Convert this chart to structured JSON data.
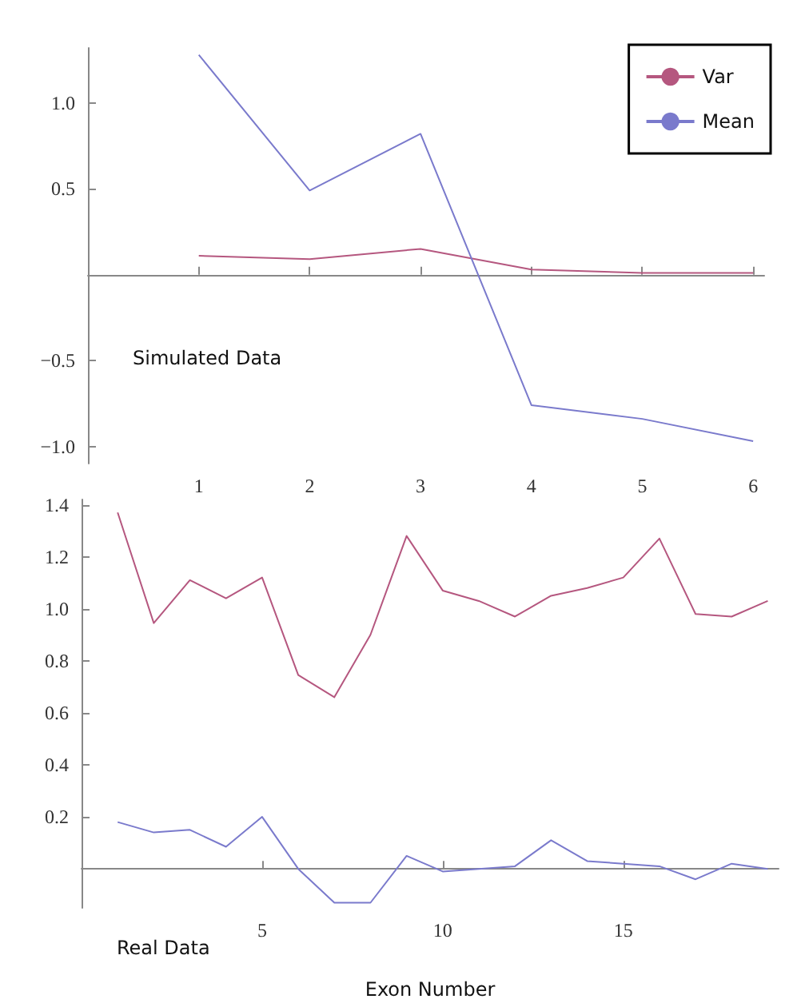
{
  "chart_data": [
    {
      "type": "line",
      "x": [
        1,
        2,
        3,
        4,
        5,
        6
      ],
      "xlim": [
        0,
        6.1
      ],
      "xticks": [
        1,
        2,
        3,
        4,
        5,
        6
      ],
      "ylim": [
        -1.1,
        1.32
      ],
      "yticks": [
        {
          "value": -1,
          "label": "−1.0"
        },
        {
          "value": -0.5,
          "label": "−0.5"
        },
        {
          "value": 0.5,
          "label": "0.5"
        },
        {
          "value": 1,
          "label": "1.0"
        }
      ],
      "legend": "top right",
      "marker": "none",
      "annotations": [
        "Simulated Data"
      ],
      "series": [
        {
          "name": "Var",
          "color": "#b5577f",
          "values": [
            0.11,
            0.09,
            0.15,
            0.03,
            0.01,
            0.01
          ]
        },
        {
          "name": "Mean",
          "color": "#7a7acc",
          "values": [
            1.28,
            0.49,
            0.82,
            -0.76,
            -0.84,
            -0.97
          ]
        }
      ]
    },
    {
      "type": "line",
      "x": [
        1,
        2,
        3,
        4,
        5,
        6,
        7,
        8,
        9,
        10,
        11,
        12,
        13,
        14,
        15,
        16,
        17,
        18,
        19
      ],
      "xlim": [
        0,
        19.3
      ],
      "xticks": [
        5,
        10,
        15
      ],
      "ylim": [
        -0.15,
        1.42
      ],
      "yticks": [
        0.2,
        0.4,
        0.6,
        0.8,
        {
          "value": 1,
          "label": "1.0"
        },
        1.2,
        1.4
      ],
      "xlabel": "Exon Number",
      "marker": "none",
      "annotations": [
        "Real Data"
      ],
      "series": [
        {
          "color": "#b5577f",
          "values": [
            1.37,
            0.945,
            1.11,
            1.04,
            1.12,
            0.745,
            0.66,
            0.9,
            1.28,
            1.07,
            1.03,
            0.97,
            1.05,
            1.08,
            1.12,
            1.27,
            0.98,
            0.97,
            1.03
          ]
        },
        {
          "color": "#7a7acc",
          "values": [
            0.18,
            0.14,
            0.15,
            0.085,
            0.2,
            0.0,
            -0.13,
            -0.13,
            0.05,
            -0.01,
            0.0,
            0.01,
            0.11,
            0.03,
            0.02,
            0.01,
            -0.04,
            0.02,
            0.0
          ]
        }
      ]
    }
  ]
}
